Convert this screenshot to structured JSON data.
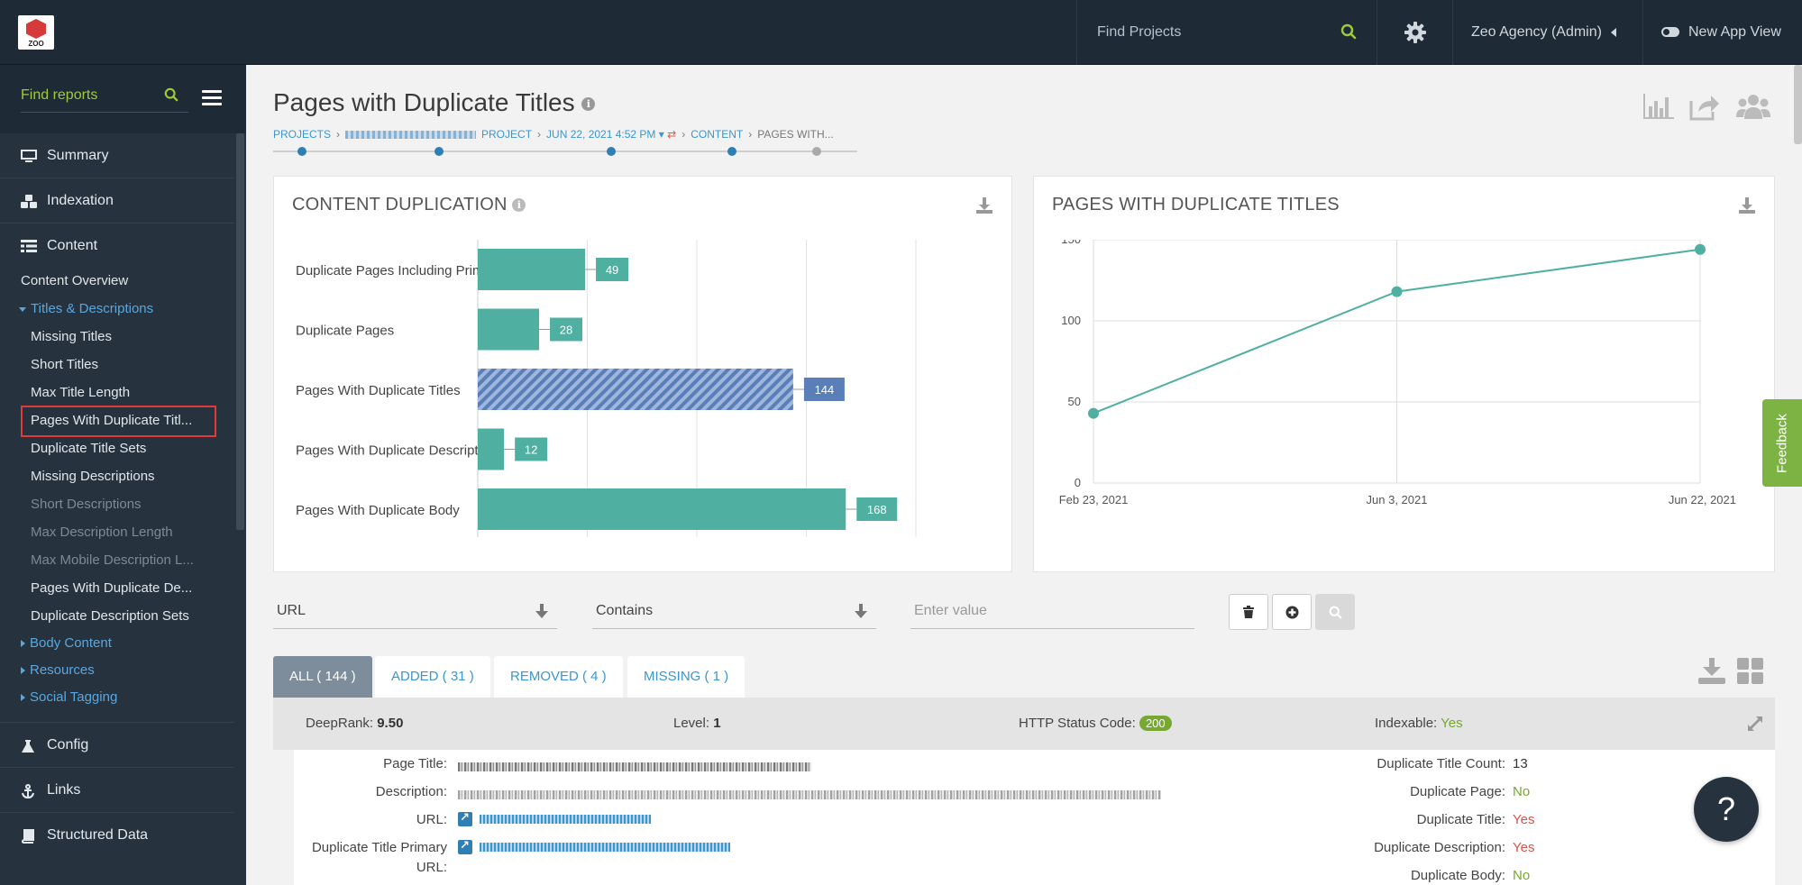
{
  "topbar": {
    "logo_text": "ZOO",
    "search_placeholder": "Find Projects",
    "account_label": "Zeo Agency (Admin)",
    "new_app_label": "New App View"
  },
  "sidebar": {
    "search_placeholder": "Find reports",
    "main_items": [
      {
        "label": "Summary",
        "icon": "monitor-icon"
      },
      {
        "label": "Indexation",
        "icon": "cubes-icon"
      },
      {
        "label": "Content",
        "icon": "list-icon"
      },
      {
        "label": "Config",
        "icon": "flask-icon"
      },
      {
        "label": "Links",
        "icon": "anchor-icon"
      },
      {
        "label": "Structured Data",
        "icon": "book-icon"
      }
    ],
    "content_overview": "Content Overview",
    "titles_group": "Titles & Descriptions",
    "sub_items": [
      {
        "label": "Missing Titles",
        "state": "normal"
      },
      {
        "label": "Short Titles",
        "state": "normal"
      },
      {
        "label": "Max Title Length",
        "state": "normal"
      },
      {
        "label": "Pages With Duplicate Titl...",
        "state": "active"
      },
      {
        "label": "Duplicate Title Sets",
        "state": "normal"
      },
      {
        "label": "Missing Descriptions",
        "state": "normal"
      },
      {
        "label": "Short Descriptions",
        "state": "disabled"
      },
      {
        "label": "Max Description Length",
        "state": "disabled"
      },
      {
        "label": "Max Mobile Description L...",
        "state": "disabled"
      },
      {
        "label": "Pages With Duplicate De...",
        "state": "normal"
      },
      {
        "label": "Duplicate Description Sets",
        "state": "normal"
      }
    ],
    "groups": [
      "Body Content",
      "Resources",
      "Social Tagging"
    ]
  },
  "page": {
    "title": "Pages with Duplicate Titles",
    "breadcrumb": {
      "projects": "PROJECTS",
      "project": "PROJECT",
      "date": "JUN 22, 2021 4:52 PM",
      "content": "CONTENT",
      "current": "PAGES WITH..."
    }
  },
  "content_card": {
    "title": "CONTENT DUPLICATION",
    "chart_data": {
      "type": "bar",
      "orientation": "horizontal",
      "title": "CONTENT DUPLICATION",
      "categories": [
        "Duplicate Pages Including Primary",
        "Duplicate Pages",
        "Pages With Duplicate Titles",
        "Pages With Duplicate Descriptions",
        "Pages With Duplicate Body"
      ],
      "values": [
        49,
        28,
        144,
        12,
        168
      ],
      "highlighted": "Pages With Duplicate Titles",
      "xlim": [
        0,
        200
      ],
      "bar_color": "#4fb0a1",
      "highlight_color": "#5a7fb8"
    }
  },
  "trend_card": {
    "title": "PAGES WITH DUPLICATE TITLES",
    "chart_data": {
      "type": "line",
      "title": "PAGES WITH DUPLICATE TITLES",
      "x": [
        "Feb 23, 2021",
        "Jun 3, 2021",
        "Jun 22, 2021"
      ],
      "y": [
        43,
        118,
        144
      ],
      "yticks": [
        "0",
        "50",
        "100",
        "150"
      ],
      "ylim": [
        0,
        150
      ],
      "line_color": "#4fb0a1"
    }
  },
  "filter": {
    "field": "URL",
    "operator": "Contains",
    "value_placeholder": "Enter value"
  },
  "tabs": [
    {
      "label": "ALL ( 144 )",
      "active": true
    },
    {
      "label": "ADDED ( 31 )",
      "active": false
    },
    {
      "label": "REMOVED ( 4 )",
      "active": false
    },
    {
      "label": "MISSING ( 1 )",
      "active": false
    }
  ],
  "result": {
    "deeprank_label": "DeepRank:",
    "deeprank_value": "9.50",
    "level_label": "Level:",
    "level_value": "1",
    "status_label": "HTTP Status Code:",
    "status_value": "200",
    "indexable_label": "Indexable:",
    "indexable_value": "Yes",
    "left_labels": [
      "Page Title:",
      "Description:",
      "URL:",
      "Duplicate Title Primary",
      "URL:"
    ],
    "right": [
      {
        "label": "Duplicate Title Count:",
        "value": "13",
        "tone": "plain"
      },
      {
        "label": "Duplicate Page:",
        "value": "No",
        "tone": "green"
      },
      {
        "label": "Duplicate Title:",
        "value": "Yes",
        "tone": "red"
      },
      {
        "label": "Duplicate Description:",
        "value": "Yes",
        "tone": "red"
      },
      {
        "label": "Duplicate Body:",
        "value": "No",
        "tone": "green"
      }
    ]
  },
  "feedback_label": "Feedback",
  "help_label": "?"
}
